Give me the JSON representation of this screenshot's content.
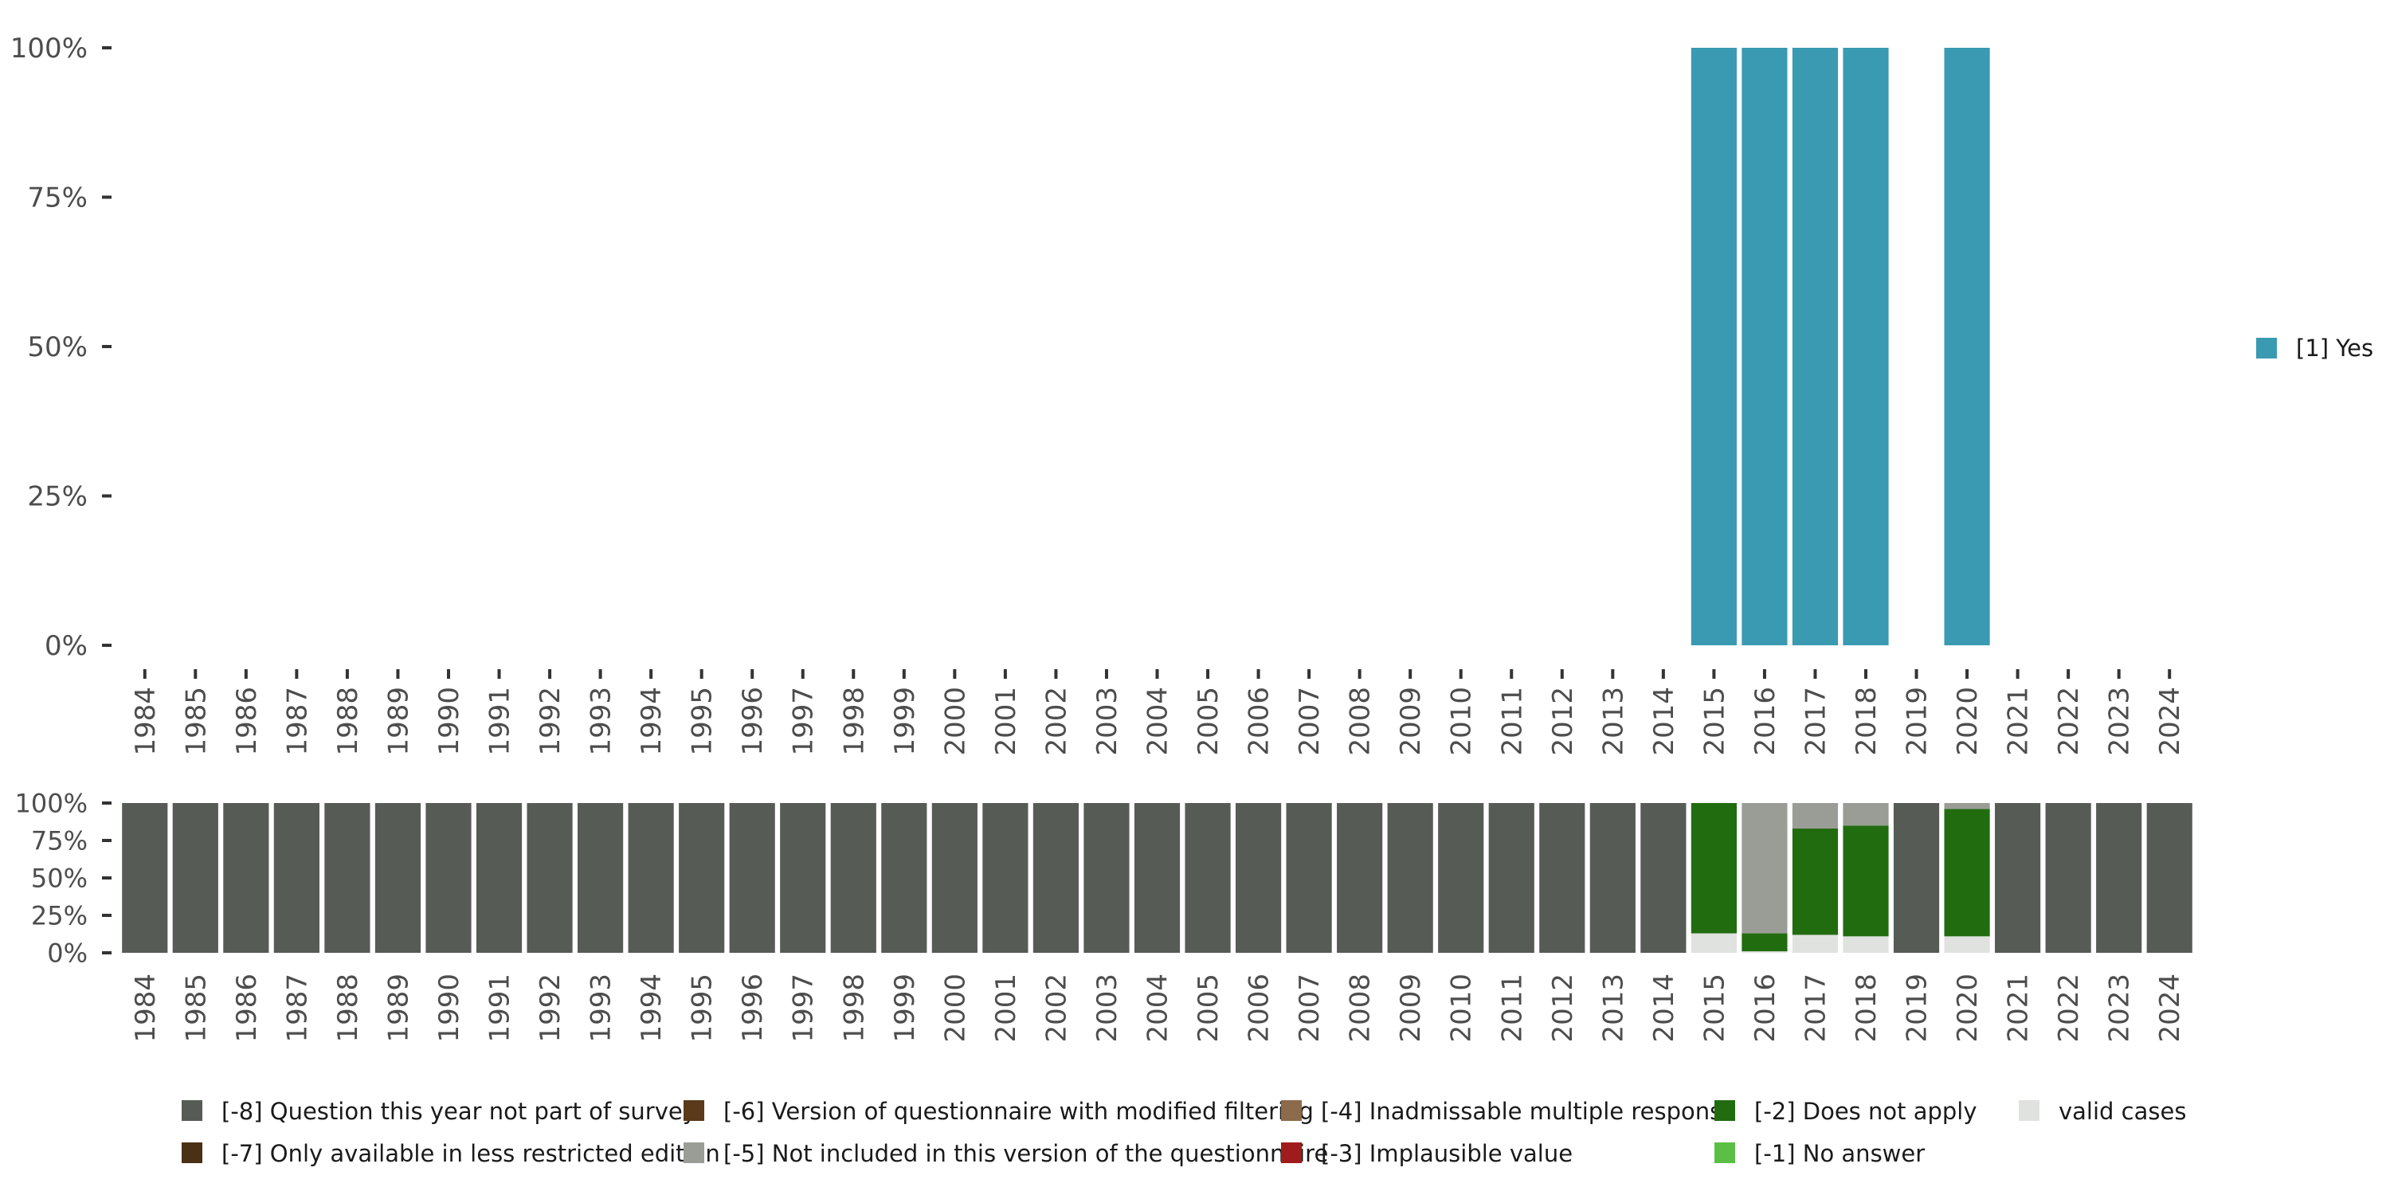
{
  "chart_data": [
    {
      "type": "bar",
      "stacked": true,
      "categories": [
        "1984",
        "1985",
        "1986",
        "1987",
        "1988",
        "1989",
        "1990",
        "1991",
        "1992",
        "1993",
        "1994",
        "1995",
        "1996",
        "1997",
        "1998",
        "1999",
        "2000",
        "2001",
        "2002",
        "2003",
        "2004",
        "2005",
        "2006",
        "2007",
        "2008",
        "2009",
        "2010",
        "2011",
        "2012",
        "2013",
        "2014",
        "2015",
        "2016",
        "2017",
        "2018",
        "2019",
        "2020",
        "2021",
        "2022",
        "2023",
        "2024"
      ],
      "y_ticks": [
        "0%",
        "25%",
        "50%",
        "75%",
        "100%"
      ],
      "ylim": [
        0,
        100
      ],
      "legend_position": "right",
      "series": [
        {
          "name": "[1] Yes",
          "color": "#3a9ab2",
          "values": [
            0,
            0,
            0,
            0,
            0,
            0,
            0,
            0,
            0,
            0,
            0,
            0,
            0,
            0,
            0,
            0,
            0,
            0,
            0,
            0,
            0,
            0,
            0,
            0,
            0,
            0,
            0,
            0,
            0,
            0,
            0,
            100,
            100,
            100,
            100,
            0,
            100,
            0,
            0,
            0,
            0
          ]
        }
      ]
    },
    {
      "type": "bar",
      "stacked": true,
      "categories": [
        "1984",
        "1985",
        "1986",
        "1987",
        "1988",
        "1989",
        "1990",
        "1991",
        "1992",
        "1993",
        "1994",
        "1995",
        "1996",
        "1997",
        "1998",
        "1999",
        "2000",
        "2001",
        "2002",
        "2003",
        "2004",
        "2005",
        "2006",
        "2007",
        "2008",
        "2009",
        "2010",
        "2011",
        "2012",
        "2013",
        "2014",
        "2015",
        "2016",
        "2017",
        "2018",
        "2019",
        "2020",
        "2021",
        "2022",
        "2023",
        "2024"
      ],
      "y_ticks": [
        "0%",
        "25%",
        "50%",
        "75%",
        "100%"
      ],
      "ylim": [
        0,
        100
      ],
      "legend_position": "bottom",
      "series": [
        {
          "name": "valid cases",
          "color": "#e0e2df",
          "values": [
            0,
            0,
            0,
            0,
            0,
            0,
            0,
            0,
            0,
            0,
            0,
            0,
            0,
            0,
            0,
            0,
            0,
            0,
            0,
            0,
            0,
            0,
            0,
            0,
            0,
            0,
            0,
            0,
            0,
            0,
            0,
            13,
            1,
            12,
            11,
            0,
            11,
            0,
            0,
            0,
            0
          ]
        },
        {
          "name": "[-1] No answer",
          "color": "#5bbf45",
          "values": [
            0,
            0,
            0,
            0,
            0,
            0,
            0,
            0,
            0,
            0,
            0,
            0,
            0,
            0,
            0,
            0,
            0,
            0,
            0,
            0,
            0,
            0,
            0,
            0,
            0,
            0,
            0,
            0,
            0,
            0,
            0,
            0,
            0,
            0,
            0,
            0,
            0,
            0,
            0,
            0,
            0
          ]
        },
        {
          "name": "[-2] Does not apply",
          "color": "#226c10",
          "values": [
            0,
            0,
            0,
            0,
            0,
            0,
            0,
            0,
            0,
            0,
            0,
            0,
            0,
            0,
            0,
            0,
            0,
            0,
            0,
            0,
            0,
            0,
            0,
            0,
            0,
            0,
            0,
            0,
            0,
            0,
            0,
            87,
            12,
            71,
            74,
            0,
            85,
            0,
            0,
            0,
            0
          ]
        },
        {
          "name": "[-3] Implausible value",
          "color": "#a01c1c",
          "values": [
            0,
            0,
            0,
            0,
            0,
            0,
            0,
            0,
            0,
            0,
            0,
            0,
            0,
            0,
            0,
            0,
            0,
            0,
            0,
            0,
            0,
            0,
            0,
            0,
            0,
            0,
            0,
            0,
            0,
            0,
            0,
            0,
            0,
            0,
            0,
            0,
            0,
            0,
            0,
            0,
            0
          ]
        },
        {
          "name": "[-4] Inadmissable multiple response",
          "color": "#8c6b4a",
          "values": [
            0,
            0,
            0,
            0,
            0,
            0,
            0,
            0,
            0,
            0,
            0,
            0,
            0,
            0,
            0,
            0,
            0,
            0,
            0,
            0,
            0,
            0,
            0,
            0,
            0,
            0,
            0,
            0,
            0,
            0,
            0,
            0,
            0,
            0,
            0,
            0,
            0,
            0,
            0,
            0,
            0
          ]
        },
        {
          "name": "[-5] Not included in this version of the questionnaire",
          "color": "#9a9d96",
          "values": [
            0,
            0,
            0,
            0,
            0,
            0,
            0,
            0,
            0,
            0,
            0,
            0,
            0,
            0,
            0,
            0,
            0,
            0,
            0,
            0,
            0,
            0,
            0,
            0,
            0,
            0,
            0,
            0,
            0,
            0,
            0,
            0,
            87,
            17,
            15,
            0,
            4,
            0,
            0,
            0,
            0
          ]
        },
        {
          "name": "[-6] Version of questionnaire with modified filtering",
          "color": "#5a3a1a",
          "values": [
            0,
            0,
            0,
            0,
            0,
            0,
            0,
            0,
            0,
            0,
            0,
            0,
            0,
            0,
            0,
            0,
            0,
            0,
            0,
            0,
            0,
            0,
            0,
            0,
            0,
            0,
            0,
            0,
            0,
            0,
            0,
            0,
            0,
            0,
            0,
            0,
            0,
            0,
            0,
            0,
            0
          ]
        },
        {
          "name": "[-7] Only available in less restricted edition",
          "color": "#4a3116",
          "values": [
            0,
            0,
            0,
            0,
            0,
            0,
            0,
            0,
            0,
            0,
            0,
            0,
            0,
            0,
            0,
            0,
            0,
            0,
            0,
            0,
            0,
            0,
            0,
            0,
            0,
            0,
            0,
            0,
            0,
            0,
            0,
            0,
            0,
            0,
            0,
            0,
            0,
            0,
            0,
            0,
            0
          ]
        },
        {
          "name": "[-8] Question this year not part of survey",
          "color": "#565c55",
          "values": [
            100,
            100,
            100,
            100,
            100,
            100,
            100,
            100,
            100,
            100,
            100,
            100,
            100,
            100,
            100,
            100,
            100,
            100,
            100,
            100,
            100,
            100,
            100,
            100,
            100,
            100,
            100,
            100,
            100,
            100,
            100,
            0,
            0,
            0,
            0,
            100,
            0,
            100,
            100,
            100,
            100
          ]
        }
      ]
    }
  ],
  "legend": {
    "rows": [
      [
        "[-8] Question this year not part of survey",
        "[-6] Version of questionnaire with modified filtering",
        "[-4] Inadmissable multiple response",
        "[-2] Does not apply",
        "valid cases"
      ],
      [
        "[-7] Only available in less restricted edition",
        "[-5] Not included in this version of the questionnaire",
        "[-3] Implausible value",
        "[-1] No answer"
      ]
    ]
  }
}
